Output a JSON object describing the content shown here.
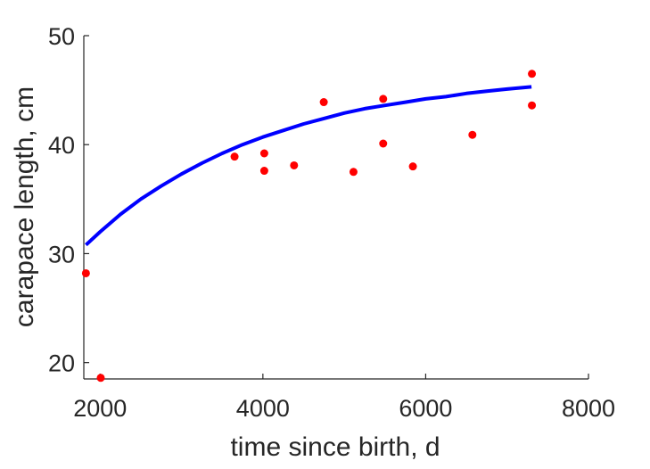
{
  "chart_data": {
    "type": "scatter",
    "title": "",
    "xlabel": "time since birth, d",
    "ylabel": "carapace length, cm",
    "xlim": [
      1800,
      8000
    ],
    "ylim": [
      18.5,
      50
    ],
    "xticks": [
      2000,
      4000,
      6000,
      8000
    ],
    "yticks": [
      20,
      30,
      40,
      50
    ],
    "grid": false,
    "legend": "none",
    "series": [
      {
        "kind": "points",
        "color": "#ff0000",
        "points": [
          {
            "x": 1826,
            "y": 28.2
          },
          {
            "x": 2008,
            "y": 18.6
          },
          {
            "x": 3652,
            "y": 38.9
          },
          {
            "x": 4017,
            "y": 39.2
          },
          {
            "x": 4017,
            "y": 37.6
          },
          {
            "x": 4383,
            "y": 38.1
          },
          {
            "x": 4748,
            "y": 43.9
          },
          {
            "x": 5113,
            "y": 37.5
          },
          {
            "x": 5478,
            "y": 44.2
          },
          {
            "x": 5478,
            "y": 40.1
          },
          {
            "x": 5843,
            "y": 38.0
          },
          {
            "x": 6574,
            "y": 40.9
          },
          {
            "x": 7305,
            "y": 46.5
          },
          {
            "x": 7305,
            "y": 43.6
          }
        ]
      },
      {
        "kind": "curve",
        "color": "#0000ff",
        "curve": {
          "x": [
            1826,
            2000,
            2250,
            2500,
            2750,
            3000,
            3250,
            3500,
            3750,
            4000,
            4250,
            4500,
            4750,
            5000,
            5250,
            5500,
            5750,
            6000,
            6250,
            6500,
            6750,
            7000,
            7300
          ],
          "y": [
            30.8,
            32.0,
            33.6,
            35.0,
            36.2,
            37.3,
            38.3,
            39.2,
            40.0,
            40.7,
            41.3,
            41.9,
            42.4,
            42.9,
            43.3,
            43.6,
            43.9,
            44.2,
            44.4,
            44.7,
            44.9,
            45.1,
            45.3
          ]
        }
      }
    ]
  }
}
